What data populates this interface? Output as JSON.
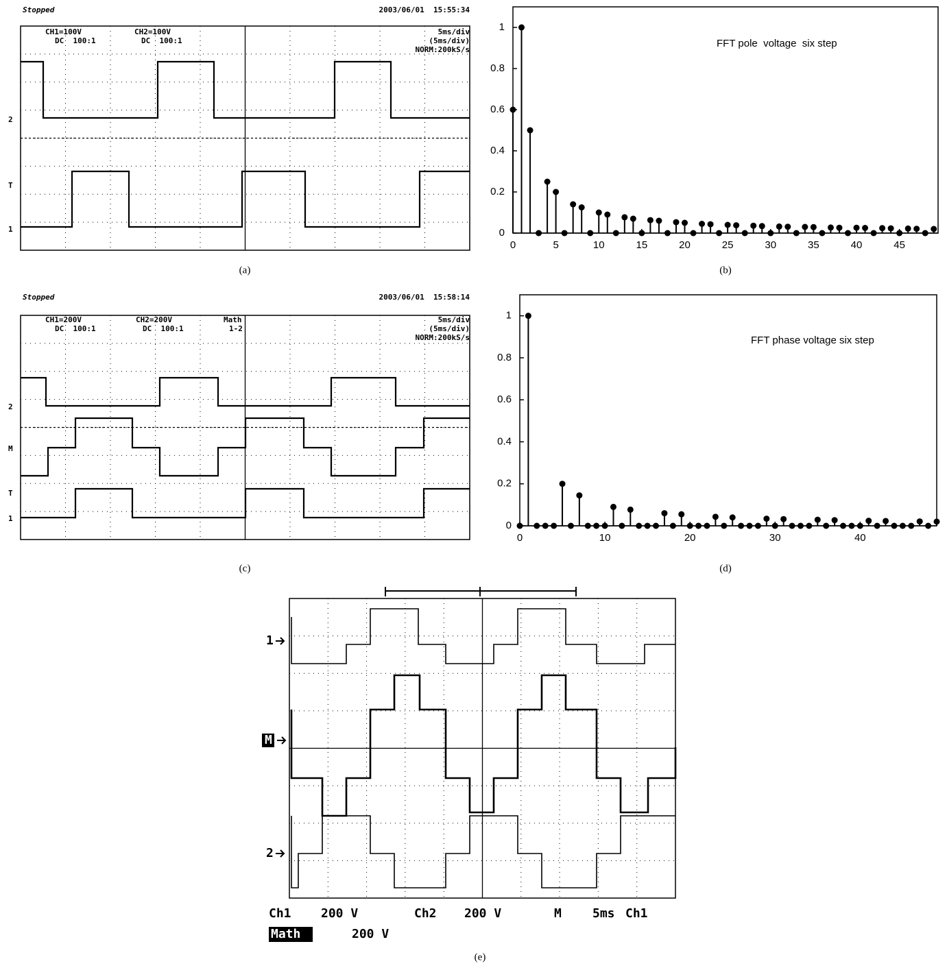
{
  "chart_data": [
    {
      "type": "oscilloscope",
      "caption": "(a)",
      "status": "Stopped",
      "timestamp": "2003/06/01  15:55:34",
      "labels": [
        "CH1=100V",
        "DC  100:1",
        "CH2=100V",
        "DC  100:1",
        "5ms/div",
        "(5ms/div)",
        "NORM:200kS/s"
      ],
      "markers": [
        "2",
        "T",
        "1"
      ]
    },
    {
      "type": "stem",
      "caption": "(b)",
      "annotation": "FFT pole  voltage  six step",
      "color": "#000000",
      "x": [
        0,
        1,
        2,
        3,
        4,
        5,
        6,
        7,
        8,
        9,
        10,
        11,
        12,
        13,
        14,
        15,
        16,
        17,
        18,
        19,
        20,
        21,
        22,
        23,
        24,
        25,
        26,
        27,
        28,
        29,
        30,
        31,
        32,
        33,
        34,
        35,
        36,
        37,
        38,
        39,
        40,
        41,
        42,
        43,
        44,
        45,
        46,
        47,
        48,
        49
      ],
      "values": [
        0.6,
        1,
        0.5,
        0,
        0.25,
        0.2,
        0,
        0.14,
        0.125,
        0,
        0.1,
        0.09,
        0,
        0.077,
        0.07,
        0,
        0.063,
        0.06,
        0,
        0.053,
        0.05,
        0,
        0.045,
        0.043,
        0,
        0.04,
        0.038,
        0,
        0.036,
        0.034,
        0,
        0.032,
        0.031,
        0,
        0.03,
        0.029,
        0,
        0.027,
        0.026,
        0,
        0.026,
        0.025,
        0,
        0.024,
        0.023,
        0,
        0.022,
        0.021,
        0,
        0.02
      ],
      "xlim": [
        0,
        49.5
      ],
      "xticks": [
        0,
        5,
        10,
        15,
        20,
        25,
        30,
        35,
        40,
        45
      ],
      "ylim": [
        0,
        1.1
      ],
      "yticks": [
        0,
        0.2,
        0.4,
        0.6,
        0.8,
        1
      ]
    },
    {
      "type": "oscilloscope",
      "caption": "(c)",
      "status": "Stopped",
      "timestamp": "2003/06/01  15:58:14",
      "labels": [
        "CH1=200V",
        "DC  100:1",
        "CH2=200V",
        "DC  100:1",
        "Math",
        "1-2",
        "5ms/div",
        "(5ms/div)",
        "NORM:200kS/s"
      ],
      "markers": [
        "2",
        "M",
        "T",
        "1"
      ]
    },
    {
      "type": "stem",
      "caption": "(d)",
      "annotation": "FFT phase voltage six step",
      "color": "#000000",
      "x": [
        0,
        1,
        2,
        3,
        4,
        5,
        6,
        7,
        8,
        9,
        10,
        11,
        12,
        13,
        14,
        15,
        16,
        17,
        18,
        19,
        20,
        21,
        22,
        23,
        24,
        25,
        26,
        27,
        28,
        29,
        30,
        31,
        32,
        33,
        34,
        35,
        36,
        37,
        38,
        39,
        40,
        41,
        42,
        43,
        44,
        45,
        46,
        47,
        48,
        49
      ],
      "values": [
        0,
        1,
        0,
        0,
        0,
        0.2,
        0,
        0.145,
        0,
        0,
        0,
        0.09,
        0,
        0.077,
        0,
        0,
        0,
        0.06,
        0,
        0.055,
        0,
        0,
        0,
        0.043,
        0,
        0.04,
        0,
        0,
        0,
        0.034,
        0,
        0.032,
        0,
        0,
        0,
        0.029,
        0,
        0.027,
        0,
        0,
        0,
        0.024,
        0,
        0.023,
        0,
        0,
        0,
        0.021,
        0,
        0.02
      ],
      "xlim": [
        0,
        49
      ],
      "xticks": [
        0,
        10,
        20,
        30,
        40
      ],
      "ylim": [
        0,
        1.1
      ],
      "yticks": [
        0,
        0.2,
        0.4,
        0.6,
        0.8,
        1
      ]
    },
    {
      "type": "oscilloscope",
      "caption": "(e)",
      "labels": [
        "Ch1",
        "200 V",
        "Ch2",
        "200 V",
        "M",
        "5ms",
        "Ch1",
        "Math",
        "200 V"
      ],
      "markers": [
        "1",
        "M",
        "2"
      ]
    }
  ]
}
